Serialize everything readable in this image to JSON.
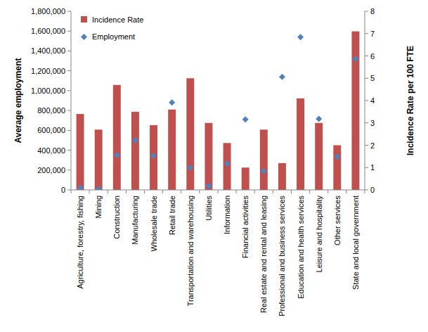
{
  "chart_data": {
    "type": "bar",
    "y_label": "Average employment",
    "y2_label": "Incidence Rate per 100 FTE",
    "categories": [
      "Agriculture, forestry, fishing",
      "Mining",
      "Construction",
      "Manufacturing",
      "Wholesale trade",
      "Retail trade",
      "Transportation and warehousing",
      "Utilities",
      "Information",
      "Financial activities",
      "Real estate and rental and leasing",
      "Professional and business services",
      "Education and health services",
      "Leisure and hospitality",
      "Other services",
      "State and local government"
    ],
    "series": [
      {
        "name": "Incidence Rate",
        "type": "bar",
        "axis": "y2",
        "color": "#c0504d",
        "values": [
          3.4,
          2.7,
          4.7,
          3.5,
          2.9,
          3.6,
          5.0,
          3.0,
          2.1,
          1.0,
          2.7,
          1.2,
          4.1,
          3.0,
          2.0,
          7.1
        ]
      },
      {
        "name": "Employment",
        "type": "scatter",
        "marker": "diamond",
        "color": "#4f81bd",
        "values": [
          20000,
          8000,
          350000,
          500000,
          345000,
          880000,
          225000,
          40000,
          265000,
          710000,
          190000,
          1140000,
          1540000,
          715000,
          335000,
          1320000
        ]
      }
    ],
    "ylim": [
      0,
      1800000
    ],
    "yticks": [
      0,
      {
        "value": 200000,
        "label": "200,000"
      },
      {
        "value": 400000,
        "label": "400,000"
      },
      {
        "value": 600000,
        "label": "600,000"
      },
      {
        "value": 800000,
        "label": "800,000"
      },
      {
        "value": 1000000,
        "label": "1,000,000"
      },
      {
        "value": 1200000,
        "label": "1,200,000"
      },
      {
        "value": 1400000,
        "label": "1,400,000"
      },
      {
        "value": 1600000,
        "label": "1,600,000"
      },
      {
        "value": 1800000,
        "label": "1,800,000"
      }
    ],
    "y2lim": [
      0,
      8
    ],
    "y2ticks": [
      0,
      1,
      2,
      3,
      4,
      5,
      6,
      7,
      8
    ],
    "grid": false,
    "legend": "top-left"
  }
}
